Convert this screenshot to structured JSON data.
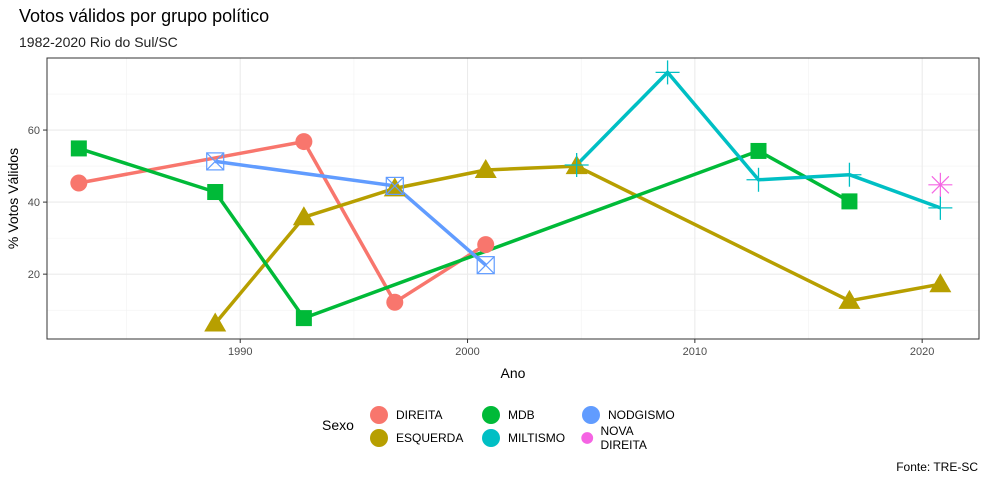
{
  "header": {
    "title": "Votos válidos por grupo político",
    "subtitle": "1982-2020 Rio do Sul/SC",
    "caption": "Fonte: TRE-SC"
  },
  "legend": {
    "title": "Sexo",
    "entries": [
      {
        "label": "DIREITA",
        "color": "#F8766D"
      },
      {
        "label": "ESQUERDA",
        "color": "#B79F00"
      },
      {
        "label": "MDB",
        "color": "#00BA38"
      },
      {
        "label": "MILTISMO",
        "color": "#00BFC4"
      },
      {
        "label": "NODGISMO",
        "color": "#619CFF"
      },
      {
        "label": "NOVA DIREITA",
        "color": "#F564E3"
      }
    ]
  },
  "chart_data": {
    "type": "line",
    "xlabel": "Ano",
    "ylabel": "% Votos Válidos",
    "xlim": [
      1981.5,
      2022.5
    ],
    "ylim": [
      2,
      80
    ],
    "x_ticks": [
      1990,
      2000,
      2010,
      2020
    ],
    "y_ticks": [
      20,
      40,
      60
    ],
    "grid": true,
    "legend_position": "bottom",
    "series": [
      {
        "name": "DIREITA",
        "color": "#F8766D",
        "marker": "circle",
        "points": [
          [
            1982.9,
            45.3
          ],
          [
            1992.8,
            56.8
          ],
          [
            1996.8,
            12.2
          ],
          [
            2000.8,
            28.2
          ]
        ]
      },
      {
        "name": "ESQUERDA",
        "color": "#B79F00",
        "marker": "triangle",
        "points": [
          [
            1988.9,
            6.3
          ],
          [
            1992.8,
            35.8
          ],
          [
            1996.8,
            43.8
          ],
          [
            2000.8,
            48.9
          ],
          [
            2004.8,
            50.0
          ],
          [
            2016.8,
            12.6
          ],
          [
            2020.8,
            17.2
          ]
        ]
      },
      {
        "name": "MDB",
        "color": "#00BA38",
        "marker": "square",
        "points": [
          [
            1982.9,
            54.9
          ],
          [
            1988.9,
            42.8
          ],
          [
            1992.8,
            7.8
          ],
          [
            2012.8,
            54.2
          ],
          [
            2016.8,
            40.2
          ]
        ]
      },
      {
        "name": "MILTISMO",
        "color": "#00BFC4",
        "marker": "cross",
        "points": [
          [
            2004.8,
            50.3
          ],
          [
            2008.8,
            76.0
          ],
          [
            2012.8,
            46.2
          ],
          [
            2016.8,
            47.6
          ],
          [
            2020.8,
            38.4
          ]
        ]
      },
      {
        "name": "NODGISMO",
        "color": "#619CFF",
        "marker": "squarex",
        "points": [
          [
            1988.9,
            51.3
          ],
          [
            1996.8,
            44.5
          ],
          [
            2000.8,
            22.5
          ]
        ]
      },
      {
        "name": "NOVA DIREITA",
        "color": "#F564E3",
        "marker": "asterisk",
        "points": [
          [
            2020.8,
            44.8
          ]
        ]
      }
    ]
  }
}
